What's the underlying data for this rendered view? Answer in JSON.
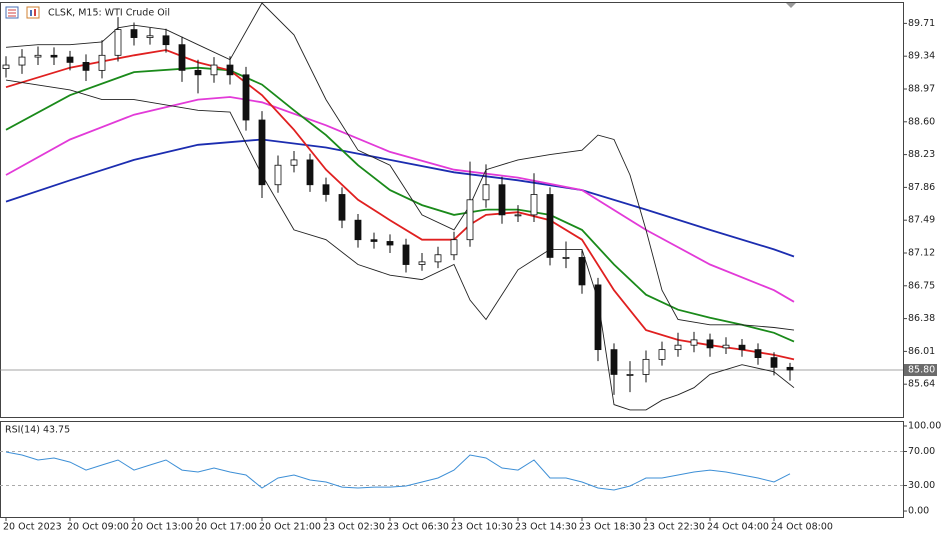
{
  "chart_data": [
    {
      "type": "candlestick",
      "title": "CLSK, M15: WTI Crude Oil",
      "xlim": [
        -1.5,
        224.25
      ],
      "x": [
        0,
        4,
        8,
        12,
        16,
        20,
        24,
        28,
        32,
        36,
        40,
        44,
        48,
        52,
        56,
        60,
        64,
        68,
        72,
        76,
        80,
        84,
        88,
        92,
        96,
        100,
        104,
        108,
        112,
        116,
        120,
        124,
        128,
        132,
        136,
        140,
        144,
        148,
        152,
        156,
        160,
        164,
        168,
        172,
        176,
        180,
        184,
        188,
        192,
        196
      ],
      "open": [
        89.2,
        89.24,
        89.33,
        89.35,
        89.33,
        89.27,
        89.18,
        89.35,
        89.64,
        89.55,
        89.57,
        89.47,
        89.18,
        89.13,
        89.24,
        89.13,
        88.62,
        87.89,
        88.11,
        88.17,
        87.89,
        87.78,
        87.49,
        87.27,
        87.25,
        87.21,
        86.99,
        87.02,
        87.1,
        87.27,
        87.72,
        87.89,
        87.55,
        87.55,
        87.78,
        87.07,
        87.07,
        86.76,
        86.03,
        85.75,
        85.75,
        85.92,
        86.03,
        86.08,
        86.14,
        86.05,
        86.08,
        86.03,
        85.94,
        85.83
      ],
      "high": [
        89.34,
        89.42,
        89.45,
        89.44,
        89.4,
        89.36,
        89.52,
        89.78,
        89.72,
        89.66,
        89.65,
        89.56,
        89.3,
        89.33,
        89.34,
        89.22,
        88.72,
        88.22,
        88.27,
        88.24,
        87.97,
        87.86,
        87.56,
        87.35,
        87.33,
        87.28,
        87.12,
        87.19,
        87.36,
        88.15,
        88.12,
        87.98,
        87.66,
        88.02,
        87.86,
        87.25,
        87.15,
        86.84,
        86.1,
        85.9,
        86.02,
        86.12,
        86.22,
        86.23,
        86.21,
        86.17,
        86.15,
        86.1,
        86.0,
        85.88
      ],
      "low": [
        89.1,
        89.14,
        89.24,
        89.24,
        89.18,
        89.06,
        89.09,
        89.28,
        89.46,
        89.47,
        89.38,
        89.05,
        88.92,
        89.04,
        89.02,
        88.5,
        87.74,
        87.8,
        88.03,
        87.81,
        87.7,
        87.4,
        87.18,
        87.17,
        87.12,
        86.9,
        86.92,
        86.95,
        87.04,
        87.19,
        87.63,
        87.45,
        87.47,
        87.47,
        86.98,
        86.95,
        86.66,
        85.9,
        85.52,
        85.55,
        85.66,
        85.85,
        85.95,
        86.0,
        85.95,
        85.98,
        85.95,
        85.86,
        85.74,
        85.68
      ],
      "close": [
        89.24,
        89.33,
        89.35,
        89.33,
        89.27,
        89.18,
        89.35,
        89.64,
        89.55,
        89.57,
        89.47,
        89.18,
        89.13,
        89.24,
        89.13,
        88.62,
        87.89,
        88.11,
        88.17,
        87.89,
        87.78,
        87.49,
        87.27,
        87.25,
        87.21,
        86.99,
        87.02,
        87.1,
        87.27,
        87.72,
        87.89,
        87.55,
        87.55,
        87.78,
        87.07,
        87.07,
        86.76,
        86.03,
        85.75,
        85.75,
        85.92,
        86.03,
        86.08,
        86.14,
        86.05,
        86.08,
        86.03,
        85.94,
        85.83,
        85.8
      ],
      "ylim": [
        85.27,
        89.94
      ],
      "yticks": [
        89.71,
        89.34,
        88.97,
        {
          "value": 88.6,
          "label": "88.60"
        },
        88.23,
        87.86,
        87.49,
        87.12,
        86.75,
        86.38,
        86.01,
        85.64
      ],
      "last_price": {
        "value": 85.8,
        "label": "85.80"
      },
      "series": [
        {
          "color": "#1c2db0",
          "x": [
            0,
            16,
            32,
            48,
            64,
            80,
            96,
            112,
            128,
            144,
            160,
            176,
            192,
            197
          ],
          "values": [
            87.7,
            87.94,
            88.17,
            88.34,
            88.4,
            88.31,
            88.17,
            88.03,
            87.94,
            87.83,
            87.61,
            87.38,
            87.16,
            87.08
          ]
        },
        {
          "color": "#e23ad8",
          "x": [
            0,
            16,
            32,
            48,
            56,
            64,
            80,
            96,
            112,
            128,
            144,
            160,
            176,
            192,
            197
          ],
          "values": [
            88.0,
            88.4,
            88.68,
            88.85,
            88.88,
            88.82,
            88.56,
            88.26,
            88.06,
            87.97,
            87.83,
            87.38,
            86.99,
            86.7,
            86.57
          ]
        },
        {
          "color": "#1a8a1a",
          "x": [
            0,
            16,
            32,
            48,
            56,
            64,
            72,
            80,
            88,
            96,
            104,
            112,
            120,
            128,
            136,
            144,
            152,
            160,
            168,
            176,
            184,
            192,
            197
          ],
          "values": [
            88.51,
            88.9,
            89.16,
            89.21,
            89.18,
            89.02,
            88.73,
            88.45,
            88.11,
            87.83,
            87.66,
            87.55,
            87.61,
            87.61,
            87.55,
            87.38,
            86.99,
            86.65,
            86.48,
            86.39,
            86.31,
            86.22,
            86.12
          ]
        },
        {
          "color": "#e02020",
          "x": [
            0,
            16,
            32,
            40,
            48,
            56,
            64,
            72,
            80,
            88,
            96,
            104,
            112,
            116,
            120,
            128,
            136,
            144,
            152,
            160,
            168,
            176,
            184,
            192,
            197
          ],
          "values": [
            88.99,
            89.21,
            89.35,
            89.41,
            89.27,
            89.18,
            88.9,
            88.51,
            88.06,
            87.72,
            87.49,
            87.27,
            87.27,
            87.44,
            87.55,
            87.58,
            87.49,
            87.27,
            86.7,
            86.25,
            86.14,
            86.08,
            86.03,
            85.97,
            85.92
          ]
        },
        {
          "color": "#222222",
          "x": [
            0,
            8,
            16,
            24,
            28,
            32,
            40,
            48,
            56,
            64,
            72,
            80,
            88,
            96,
            104,
            112,
            116,
            120,
            128,
            136,
            144,
            148,
            152,
            156,
            160,
            164,
            168,
            176,
            184,
            192,
            197
          ],
          "values": [
            89.44,
            89.47,
            89.47,
            89.5,
            89.66,
            89.69,
            89.64,
            89.47,
            89.3,
            89.94,
            89.58,
            88.85,
            88.28,
            88.11,
            87.55,
            87.38,
            87.66,
            88.06,
            88.17,
            88.23,
            88.28,
            88.45,
            88.4,
            88.0,
            87.38,
            86.7,
            86.37,
            86.31,
            86.31,
            86.28,
            86.25
          ]
        },
        {
          "color": "#222222",
          "x": [
            0,
            16,
            24,
            32,
            40,
            48,
            56,
            64,
            72,
            80,
            88,
            96,
            104,
            112,
            116,
            120,
            128,
            136,
            144,
            148,
            152,
            156,
            160,
            164,
            168,
            172,
            176,
            184,
            192,
            197
          ],
          "values": [
            89.07,
            88.96,
            88.85,
            88.85,
            88.79,
            88.73,
            88.71,
            88.0,
            87.38,
            87.27,
            86.99,
            86.87,
            86.82,
            86.99,
            86.59,
            86.37,
            86.93,
            87.16,
            87.16,
            86.59,
            85.41,
            85.35,
            85.35,
            85.46,
            85.52,
            85.6,
            85.75,
            85.86,
            85.78,
            85.6
          ]
        }
      ]
    },
    {
      "type": "line",
      "title": "RSI(14) 43.75",
      "xlim": [
        -1.5,
        224.25
      ],
      "x": [
        0,
        4,
        8,
        12,
        16,
        20,
        24,
        28,
        32,
        36,
        40,
        44,
        48,
        52,
        56,
        60,
        64,
        68,
        72,
        76,
        80,
        84,
        88,
        92,
        96,
        100,
        104,
        108,
        112,
        116,
        120,
        124,
        128,
        132,
        136,
        140,
        144,
        148,
        152,
        156,
        160,
        164,
        168,
        172,
        176,
        180,
        184,
        188,
        192,
        196
      ],
      "values": [
        69.4,
        65.9,
        60.0,
        62.4,
        57.6,
        48.2,
        54.1,
        60.0,
        48.2,
        54.1,
        60.0,
        48.2,
        45.9,
        50.6,
        45.9,
        42.4,
        27.1,
        38.8,
        42.4,
        36.5,
        34.1,
        28.2,
        27.1,
        28.2,
        28.2,
        29.4,
        34.1,
        38.8,
        48.2,
        65.9,
        62.4,
        50.6,
        48.2,
        60.0,
        38.8,
        38.8,
        34.1,
        27.1,
        24.7,
        29.4,
        38.8,
        38.8,
        42.4,
        45.9,
        48.2,
        45.9,
        42.4,
        38.8,
        34.1,
        43.75
      ],
      "color": "#3d8fd6",
      "ylim": [
        -7,
        104.7
      ],
      "yticks": [
        {
          "value": 100,
          "label": "100.00"
        },
        {
          "value": 70,
          "label": "70.00"
        },
        {
          "value": 30,
          "label": "30.00"
        },
        {
          "value": 0,
          "label": "0.00"
        }
      ],
      "levels": [
        70,
        30
      ],
      "xticks": [
        {
          "value": 0,
          "label": "20 Oct 2023"
        },
        {
          "value": 16,
          "label": "20 Oct 09:00"
        },
        {
          "value": 32,
          "label": "20 Oct 13:00"
        },
        {
          "value": 48,
          "label": "20 Oct 17:00"
        },
        {
          "value": 64,
          "label": "20 Oct 21:00"
        },
        {
          "value": 80,
          "label": "23 Oct 02:30"
        },
        {
          "value": 96,
          "label": "23 Oct 06:30"
        },
        {
          "value": 112,
          "label": "23 Oct 10:30"
        },
        {
          "value": 128,
          "label": "23 Oct 14:30"
        },
        {
          "value": 144,
          "label": "23 Oct 18:30"
        },
        {
          "value": 160,
          "label": "23 Oct 22:30"
        },
        {
          "value": 176,
          "label": "24 Oct 04:00"
        },
        {
          "value": 192,
          "label": "24 Oct 08:00"
        }
      ]
    }
  ]
}
